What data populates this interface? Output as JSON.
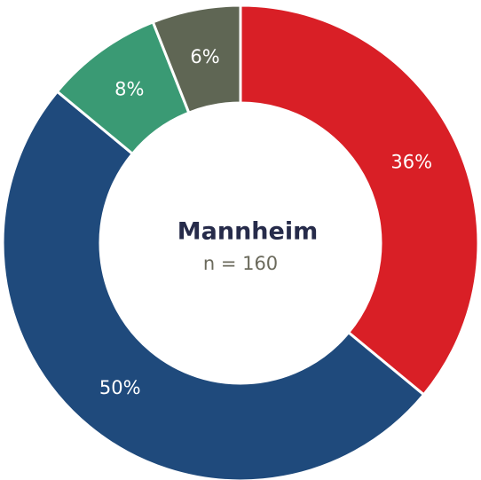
{
  "chart_data": {
    "type": "donut",
    "title": "Mannheim",
    "subtitle": "n = 160",
    "categories": [
      null,
      null,
      null,
      null
    ],
    "values": [
      36,
      50,
      8,
      6
    ],
    "value_labels": [
      "36%",
      "50%",
      "8%",
      "6%"
    ],
    "colors": [
      "#d91f26",
      "#1f4a7c",
      "#3a9a74",
      "#5f6654"
    ]
  }
}
